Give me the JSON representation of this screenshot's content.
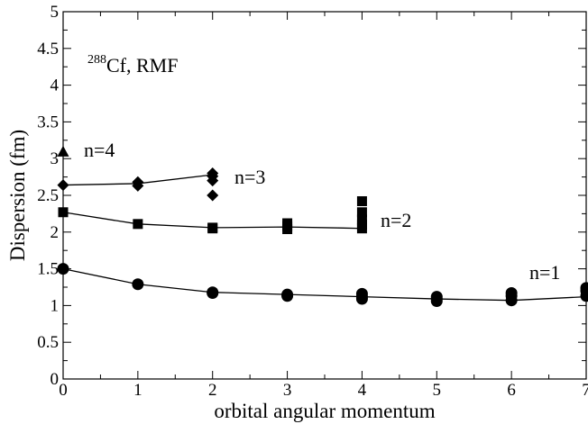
{
  "chart_data": {
    "type": "scatter",
    "xlabel": "orbital angular momentum",
    "ylabel": "Dispersion (fm)",
    "xlim": [
      0,
      7
    ],
    "ylim": [
      0,
      5
    ],
    "x_ticks": [
      0,
      1,
      2,
      3,
      4,
      5,
      6,
      7
    ],
    "y_ticks": [
      "0",
      "0.5",
      "1",
      "1.5",
      "2",
      "2.5",
      "3",
      "3.5",
      "4",
      "4.5",
      "5"
    ],
    "annotation": {
      "mass_number": "288",
      "text": "Cf, RMF"
    },
    "grid": false,
    "series": [
      {
        "label": "n=1",
        "marker": "circle",
        "line_x": [
          0,
          1,
          2,
          3,
          4,
          5,
          6,
          7
        ],
        "line_y": [
          1.5,
          1.29,
          1.18,
          1.15,
          1.12,
          1.09,
          1.07,
          1.12
        ],
        "points": [
          [
            0,
            1.5
          ],
          [
            1,
            1.29
          ],
          [
            2,
            1.18
          ],
          [
            2,
            1.17
          ],
          [
            3,
            1.15
          ],
          [
            3,
            1.13
          ],
          [
            4,
            1.16
          ],
          [
            4,
            1.12
          ],
          [
            4,
            1.09
          ],
          [
            5,
            1.12
          ],
          [
            5,
            1.09
          ],
          [
            5,
            1.06
          ],
          [
            6,
            1.17
          ],
          [
            6,
            1.13
          ],
          [
            6,
            1.07
          ],
          [
            7,
            1.24
          ],
          [
            7,
            1.2
          ],
          [
            7,
            1.13
          ]
        ]
      },
      {
        "label": "n=2",
        "marker": "square",
        "line_x": [
          0,
          1,
          2,
          3,
          4
        ],
        "line_y": [
          2.27,
          2.11,
          2.06,
          2.07,
          2.05
        ],
        "points": [
          [
            0,
            2.27
          ],
          [
            1,
            2.11
          ],
          [
            2,
            2.06
          ],
          [
            2,
            2.05
          ],
          [
            3,
            2.12
          ],
          [
            3,
            2.08
          ],
          [
            3,
            2.04
          ],
          [
            4,
            2.42
          ],
          [
            4,
            2.27
          ],
          [
            4,
            2.17
          ],
          [
            4,
            2.1
          ],
          [
            4,
            2.05
          ]
        ]
      },
      {
        "label": "n=3",
        "marker": "diamond",
        "line_x": [
          0,
          1,
          2
        ],
        "line_y": [
          2.64,
          2.66,
          2.78
        ],
        "points": [
          [
            0,
            2.64
          ],
          [
            1,
            2.68
          ],
          [
            1,
            2.63
          ],
          [
            2,
            2.8
          ],
          [
            2,
            2.76
          ],
          [
            2,
            2.7
          ],
          [
            2,
            2.5
          ]
        ]
      },
      {
        "label": "n=4",
        "marker": "triangle",
        "line_x": [],
        "line_y": [],
        "points": [
          [
            0,
            3.09
          ]
        ]
      }
    ]
  }
}
